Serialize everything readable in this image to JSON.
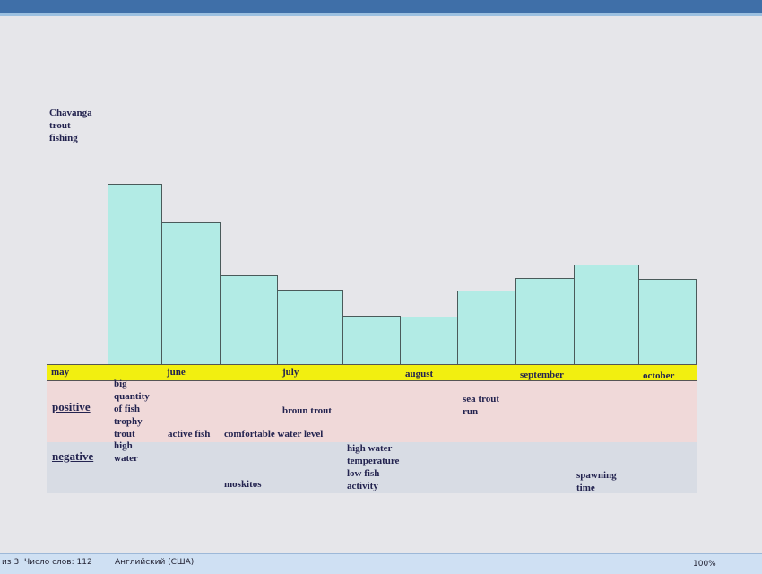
{
  "title_lines": [
    "Chavanga",
    "trout",
    "fishing"
  ],
  "months": [
    "may",
    "june",
    "july",
    "august",
    "september",
    "october"
  ],
  "rows": {
    "positive": "positive",
    "negative": "negative"
  },
  "notes": [
    {
      "lines": [
        "big",
        "quantity",
        "of fish",
        "trophy",
        "trout"
      ]
    },
    {
      "lines": [
        "high",
        "water"
      ]
    },
    {
      "lines": [
        "active fish"
      ]
    },
    {
      "lines": [
        "comfortable water level"
      ]
    },
    {
      "lines": [
        "broun trout"
      ]
    },
    {
      "lines": [
        "moskitos"
      ]
    },
    {
      "lines": [
        "high water",
        "temperature",
        "low fish",
        "activity"
      ]
    },
    {
      "lines": [
        "sea trout",
        "run"
      ]
    },
    {
      "lines": [
        "spawning",
        "time"
      ]
    }
  ],
  "status_bar": {
    "page": "из 3",
    "words": "Число слов: 112",
    "language": "Английский (США)",
    "zoom": "100%"
  }
}
